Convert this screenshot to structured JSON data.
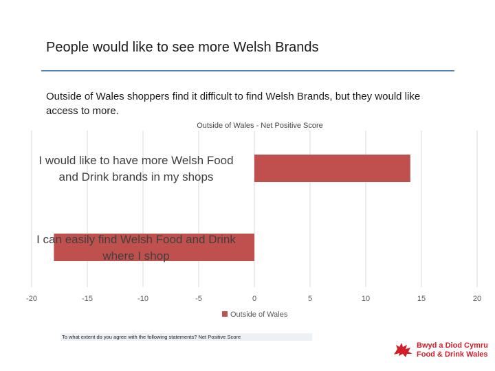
{
  "page": {
    "title": "People would like to see more Welsh Brands",
    "subtitle": "Outside of Wales shoppers find it difficult to find Welsh Brands, but they would like access to more.",
    "footnote": "To what extent do you agree with the following statements? Net Positive Score",
    "logo": {
      "line1": "Bwyd a Diod Cymru",
      "line2": "Food & Drink Wales",
      "icon": "welsh-dragon-icon"
    }
  },
  "colors": {
    "bar": "#c0504d",
    "rule": "#4f81bd",
    "grid": "#d9d9d9",
    "logo": "#d11f2a"
  },
  "chart_data": {
    "type": "bar",
    "orientation": "horizontal",
    "title": "Outside of  Wales  - Net Positive Score",
    "categories": [
      "I would like to have more Welsh Food and Drink brands in my shops",
      "I can easily find Welsh Food and Drink where I shop"
    ],
    "category_lines": [
      [
        "I would like to have more Welsh Food",
        "and Drink brands in my shops"
      ],
      [
        "I can easily find Welsh Food and Drink",
        "where I shop"
      ]
    ],
    "series": [
      {
        "name": "Outside of Wales",
        "values": [
          14,
          -18
        ]
      }
    ],
    "xlim": [
      -20,
      20
    ],
    "xticks": [
      -20,
      -15,
      -10,
      -5,
      0,
      5,
      10,
      15,
      20
    ],
    "xtick_labels": [
      "-20",
      "-15",
      "-10",
      "-5",
      "0",
      "5",
      "10",
      "15",
      "20"
    ],
    "grid": "vertical",
    "legend": "bottom"
  }
}
